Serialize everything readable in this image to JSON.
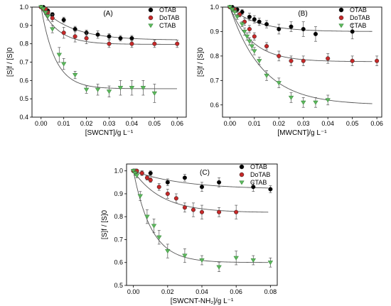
{
  "chart_data": [
    {
      "type": "scatter",
      "panel_label": "(A)",
      "xlabel": "[SWCNT]/g L⁻¹",
      "ylabel": "[S]f / [S]0",
      "xlim": [
        -0.004,
        0.064
      ],
      "ylim": [
        0.4,
        1.0
      ],
      "xticks": [
        "0.00",
        "0.01",
        "0.02",
        "0.03",
        "0.04",
        "0.05",
        "0.06"
      ],
      "xtick_values": [
        0,
        0.01,
        0.02,
        0.03,
        0.04,
        0.05,
        0.06
      ],
      "yticks": [
        "0.4",
        "0.5",
        "0.6",
        "0.7",
        "0.8",
        "0.9",
        "1.0"
      ],
      "ytick_values": [
        0.4,
        0.5,
        0.6,
        0.7,
        0.8,
        0.9,
        1.0
      ],
      "legend_position": "top-right",
      "series": [
        {
          "name": "OTAB",
          "marker": "circle",
          "color": "#000000",
          "x": [
            0,
            0.001,
            0.002,
            0.003,
            0.005,
            0.01,
            0.015,
            0.02,
            0.025,
            0.03,
            0.035,
            0.04
          ],
          "y": [
            1.0,
            1.0,
            0.99,
            0.98,
            0.96,
            0.93,
            0.88,
            0.86,
            0.85,
            0.84,
            0.83,
            0.83
          ],
          "err": [
            0.0,
            0.0,
            0.01,
            0.01,
            0.01,
            0.015,
            0.015,
            0.015,
            0.02,
            0.015,
            0.015,
            0.015
          ]
        },
        {
          "name": "DoTAB",
          "marker": "circle",
          "color": "#c62828",
          "x": [
            0,
            0.001,
            0.002,
            0.003,
            0.005,
            0.01,
            0.015,
            0.02,
            0.03,
            0.04,
            0.05,
            0.06
          ],
          "y": [
            1.0,
            0.99,
            0.99,
            0.97,
            0.94,
            0.86,
            0.84,
            0.83,
            0.8,
            0.8,
            0.8,
            0.8
          ],
          "err": [
            0.0,
            0.01,
            0.01,
            0.01,
            0.02,
            0.03,
            0.03,
            0.03,
            0.02,
            0.02,
            0.02,
            0.02
          ]
        },
        {
          "name": "CTAB",
          "marker": "triangle-down",
          "color": "#5cb85c",
          "x": [
            0,
            0.001,
            0.002,
            0.003,
            0.005,
            0.008,
            0.01,
            0.015,
            0.02,
            0.025,
            0.03,
            0.035,
            0.04,
            0.045,
            0.05
          ],
          "y": [
            1.0,
            0.99,
            0.97,
            0.95,
            0.88,
            0.74,
            0.69,
            0.63,
            0.55,
            0.55,
            0.54,
            0.56,
            0.56,
            0.56,
            0.53
          ],
          "err": [
            0.0,
            0.01,
            0.01,
            0.02,
            0.02,
            0.04,
            0.03,
            0.02,
            0.02,
            0.03,
            0.03,
            0.04,
            0.04,
            0.04,
            0.05
          ]
        }
      ],
      "fits": [
        {
          "series": "OTAB",
          "y0": 1.0,
          "plateau": 0.82,
          "k": 75
        },
        {
          "series": "DoTAB",
          "y0": 1.0,
          "plateau": 0.797,
          "k": 130
        },
        {
          "series": "CTAB",
          "y0": 1.0,
          "plateau": 0.555,
          "k": 160
        }
      ]
    },
    {
      "type": "scatter",
      "panel_label": "(B)",
      "xlabel": "[MWCNT]/g L⁻¹",
      "ylabel": "[S]f / [S]0",
      "xlim": [
        -0.003,
        0.062
      ],
      "ylim": [
        0.55,
        1.0
      ],
      "xticks": [
        "0.00",
        "0.01",
        "0.02",
        "0.03",
        "0.04",
        "0.05",
        "0.06"
      ],
      "xtick_values": [
        0,
        0.01,
        0.02,
        0.03,
        0.04,
        0.05,
        0.06
      ],
      "yticks": [
        "0.6",
        "0.7",
        "0.8",
        "0.9",
        "1.0"
      ],
      "ytick_values": [
        0.6,
        0.7,
        0.8,
        0.9,
        1.0
      ],
      "legend_position": "top-right",
      "series": [
        {
          "name": "OTAB",
          "marker": "circle",
          "color": "#000000",
          "x": [
            0,
            0.001,
            0.002,
            0.003,
            0.005,
            0.008,
            0.01,
            0.012,
            0.015,
            0.02,
            0.025,
            0.03,
            0.035,
            0.05
          ],
          "y": [
            1.0,
            1.0,
            0.99,
            0.99,
            0.98,
            0.96,
            0.95,
            0.94,
            0.93,
            0.91,
            0.92,
            0.91,
            0.89,
            0.9
          ],
          "err": [
            0.0,
            0.0,
            0.01,
            0.01,
            0.01,
            0.015,
            0.015,
            0.015,
            0.015,
            0.02,
            0.02,
            0.03,
            0.03,
            0.03
          ]
        },
        {
          "name": "DoTAB",
          "marker": "circle",
          "color": "#c62828",
          "x": [
            0,
            0.002,
            0.004,
            0.006,
            0.008,
            0.01,
            0.015,
            0.02,
            0.025,
            0.03,
            0.04,
            0.05,
            0.06
          ],
          "y": [
            1.0,
            0.99,
            0.97,
            0.94,
            0.91,
            0.88,
            0.84,
            0.8,
            0.78,
            0.78,
            0.79,
            0.78,
            0.78
          ],
          "err": [
            0.0,
            0.01,
            0.01,
            0.015,
            0.015,
            0.015,
            0.015,
            0.02,
            0.02,
            0.02,
            0.02,
            0.02,
            0.02
          ]
        },
        {
          "name": "CTAB",
          "marker": "triangle-down",
          "color": "#5cb85c",
          "x": [
            0,
            0.001,
            0.002,
            0.003,
            0.005,
            0.006,
            0.007,
            0.008,
            0.009,
            0.01,
            0.012,
            0.015,
            0.02,
            0.025,
            0.03,
            0.035,
            0.04
          ],
          "y": [
            1.0,
            0.99,
            0.98,
            0.96,
            0.93,
            0.9,
            0.88,
            0.86,
            0.84,
            0.82,
            0.78,
            0.72,
            0.69,
            0.63,
            0.61,
            0.61,
            0.62
          ],
          "err": [
            0.0,
            0.01,
            0.01,
            0.01,
            0.01,
            0.015,
            0.015,
            0.015,
            0.015,
            0.015,
            0.015,
            0.02,
            0.02,
            0.02,
            0.02,
            0.02,
            0.02
          ]
        }
      ],
      "fits": [
        {
          "series": "OTAB",
          "y0": 1.0,
          "plateau": 0.9,
          "k": 90
        },
        {
          "series": "DoTAB",
          "y0": 1.0,
          "plateau": 0.777,
          "k": 110
        },
        {
          "series": "CTAB",
          "y0": 1.0,
          "plateau": 0.6,
          "k": 75
        }
      ]
    },
    {
      "type": "scatter",
      "panel_label": "(C)",
      "xlabel": "[SWCNT-NH₂]/g L⁻¹",
      "ylabel": "[S]f / [S]0",
      "xlim": [
        -0.004,
        0.084
      ],
      "ylim": [
        0.5,
        1.03
      ],
      "xticks": [
        "0.00",
        "0.02",
        "0.04",
        "0.06",
        "0.08"
      ],
      "xtick_values": [
        0,
        0.02,
        0.04,
        0.06,
        0.08
      ],
      "yticks": [
        "0.5",
        "0.6",
        "0.7",
        "0.8",
        "0.9",
        "1.0"
      ],
      "ytick_values": [
        0.5,
        0.6,
        0.7,
        0.8,
        0.9,
        1.0
      ],
      "legend_position": "top-right",
      "series": [
        {
          "name": "OTAB",
          "marker": "circle",
          "color": "#000000",
          "x": [
            0,
            0.001,
            0.002,
            0.005,
            0.01,
            0.02,
            0.03,
            0.04,
            0.05,
            0.07,
            0.08
          ],
          "y": [
            1.0,
            1.0,
            1.0,
            0.99,
            0.99,
            0.95,
            0.97,
            0.93,
            0.95,
            0.93,
            0.92
          ],
          "err": [
            0.0,
            0.0,
            0.0,
            0.01,
            0.01,
            0.015,
            0.015,
            0.02,
            0.02,
            0.02,
            0.015
          ]
        },
        {
          "name": "DoTAB",
          "marker": "circle",
          "color": "#c62828",
          "x": [
            0,
            0.001,
            0.002,
            0.005,
            0.008,
            0.01,
            0.015,
            0.02,
            0.025,
            0.03,
            0.035,
            0.04,
            0.05,
            0.06
          ],
          "y": [
            1.0,
            1.0,
            1.0,
            0.99,
            0.97,
            0.96,
            0.93,
            0.9,
            0.88,
            0.84,
            0.83,
            0.82,
            0.82,
            0.82
          ],
          "err": [
            0.0,
            0.0,
            0.0,
            0.01,
            0.01,
            0.01,
            0.015,
            0.02,
            0.02,
            0.02,
            0.03,
            0.03,
            0.02,
            0.03
          ]
        },
        {
          "name": "CTAB",
          "marker": "triangle-down",
          "color": "#5cb85c",
          "x": [
            0,
            0.001,
            0.002,
            0.004,
            0.008,
            0.012,
            0.015,
            0.02,
            0.03,
            0.04,
            0.05,
            0.06,
            0.07,
            0.08
          ],
          "y": [
            1.0,
            0.99,
            0.98,
            0.89,
            0.8,
            0.76,
            0.71,
            0.65,
            0.63,
            0.61,
            0.58,
            0.62,
            0.61,
            0.6
          ],
          "err": [
            0.0,
            0.01,
            0.01,
            0.02,
            0.03,
            0.03,
            0.03,
            0.03,
            0.03,
            0.02,
            0.02,
            0.03,
            0.02,
            0.02
          ]
        }
      ],
      "fits": [
        {
          "series": "OTAB",
          "y0": 1.0,
          "plateau": 0.92,
          "k": 35
        },
        {
          "series": "DoTAB",
          "y0": 1.0,
          "plateau": 0.818,
          "k": 60
        },
        {
          "series": "CTAB",
          "y0": 1.0,
          "plateau": 0.6,
          "k": 95
        }
      ]
    }
  ]
}
